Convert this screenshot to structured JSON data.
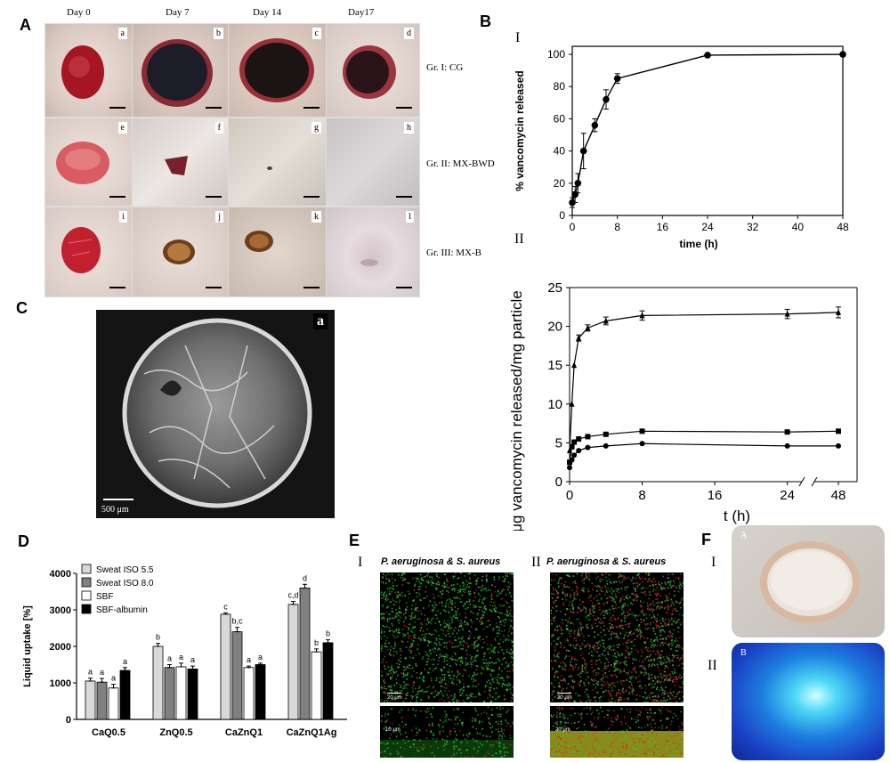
{
  "panels": {
    "A": "A",
    "B": "B",
    "C": "C",
    "D": "D",
    "E": "E",
    "F": "F"
  },
  "panelA": {
    "days": [
      "Day 0",
      "Day 7",
      "Day 14",
      "Day17"
    ],
    "groups": [
      "Gr. I: CG",
      "Gr. II: MX-BWD",
      "Gr. III: MX-B"
    ],
    "tags": [
      "a",
      "b",
      "c",
      "d",
      "e",
      "f",
      "g",
      "h",
      "i",
      "j",
      "k",
      "l"
    ]
  },
  "panelB": {
    "roman1": "I",
    "roman2": "II"
  },
  "panelC": {
    "tag": "a",
    "scale": "500 μm"
  },
  "panelE": {
    "roman1": "I",
    "roman2": "II",
    "title1": "P. aeruginosa & S. aureus",
    "title2": "P. aeruginosa & S. aureus",
    "scale1": "20 μm",
    "scale2": "20 μm",
    "scale3": "10 μm",
    "scale4": "20 μm"
  },
  "panelF": {
    "roman1": "I",
    "roman2": "II",
    "tag1": "A",
    "tag2": "B"
  },
  "chart_data": [
    {
      "id": "B-I",
      "type": "line",
      "x": [
        0,
        0.5,
        1,
        2,
        4,
        6,
        8,
        24,
        48
      ],
      "series": [
        {
          "values": [
            8,
            13,
            20,
            40,
            56,
            72,
            85,
            99.5,
            100
          ],
          "err": [
            3,
            5,
            6,
            11,
            4,
            6,
            3,
            1,
            0.5
          ]
        }
      ],
      "xlabel": "time (h)",
      "ylabel": "% vancomycin released",
      "xticks": [
        0,
        8,
        16,
        24,
        32,
        40,
        48
      ],
      "yticks": [
        0,
        20,
        40,
        60,
        80,
        100
      ],
      "xlim": [
        0,
        48
      ],
      "ylim": [
        0,
        105
      ]
    },
    {
      "id": "B-II",
      "type": "line",
      "x": [
        0,
        0.25,
        0.5,
        1,
        2,
        4,
        8,
        24,
        48
      ],
      "series": [
        {
          "marker": "triangle",
          "values": [
            4,
            10,
            15,
            18.5,
            19.8,
            20.7,
            21.4,
            21.6,
            21.8
          ],
          "err": [
            0,
            0,
            0,
            0.4,
            0.4,
            0.5,
            0.6,
            0.6,
            0.7
          ]
        },
        {
          "marker": "square",
          "values": [
            2.5,
            4.5,
            5.1,
            5.5,
            5.8,
            6.1,
            6.5,
            6.4,
            6.5
          ],
          "err": [
            0,
            0,
            0,
            0,
            0,
            0,
            0,
            0,
            0
          ]
        },
        {
          "marker": "circle",
          "values": [
            1.8,
            2.8,
            3.4,
            4.0,
            4.4,
            4.6,
            4.9,
            4.6,
            4.6
          ],
          "err": [
            0,
            0,
            0,
            0,
            0,
            0,
            0,
            0,
            0
          ]
        }
      ],
      "xlabel": "t (h)",
      "ylabel": "μg vancomycin released/mg particle",
      "xticks": [
        "0",
        "8",
        "16",
        "24",
        "48"
      ],
      "yticks": [
        0,
        5,
        10,
        15,
        20,
        25
      ],
      "ylim": [
        0,
        25
      ]
    },
    {
      "id": "D",
      "type": "bar",
      "categories": [
        "CaQ0.5",
        "ZnQ0.5",
        "CaZnQ1",
        "CaZnQ1Ag"
      ],
      "series": [
        {
          "name": "Sweat ISO 5.5",
          "color": "#d9d9d9",
          "values": [
            1050,
            2000,
            2880,
            3150
          ],
          "err": [
            80,
            80,
            40,
            80
          ],
          "labels": [
            "a",
            "b",
            "c",
            "c,d"
          ]
        },
        {
          "name": "Sweat ISO 8.0",
          "color": "#808080",
          "values": [
            1020,
            1420,
            2400,
            3600
          ],
          "err": [
            100,
            80,
            120,
            100
          ],
          "labels": [
            "a",
            "a",
            "b,c",
            "d"
          ]
        },
        {
          "name": "SBF",
          "color": "#ffffff",
          "values": [
            860,
            1440,
            1420,
            1850
          ],
          "err": [
            100,
            100,
            40,
            80
          ],
          "labels": [
            "a",
            "a",
            "a",
            "b"
          ]
        },
        {
          "name": "SBF-albumin",
          "color": "#000000",
          "values": [
            1340,
            1380,
            1500,
            2100
          ],
          "err": [
            80,
            80,
            40,
            80
          ],
          "labels": [
            "a",
            "a",
            "a",
            "b"
          ]
        }
      ],
      "ylabel": "Liquid uptake [%]",
      "yticks": [
        0,
        1000,
        2000,
        3000,
        4000
      ],
      "ylim": [
        0,
        4000
      ]
    }
  ]
}
